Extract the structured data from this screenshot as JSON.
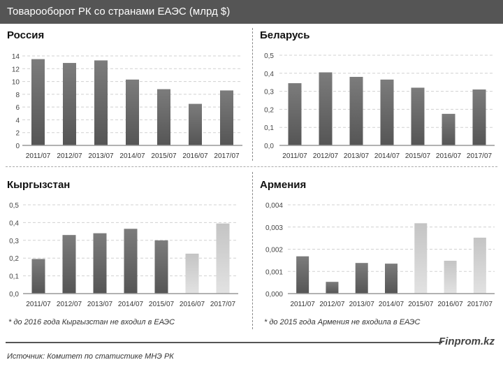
{
  "header": {
    "title": "Товарооборот РК со странами ЕАЭС (млрд $)"
  },
  "colors": {
    "header_bg": "#555555",
    "bar_dark": "#606060",
    "bar_light": "#d4d4d4"
  },
  "chart_data": [
    {
      "type": "bar",
      "title": "Россия",
      "categories": [
        "2011/07",
        "2012/07",
        "2013/07",
        "2014/07",
        "2015/07",
        "2016/07",
        "2017/07"
      ],
      "values": [
        13.5,
        12.9,
        13.3,
        10.3,
        8.8,
        6.5,
        8.6
      ],
      "ylim": [
        0,
        14
      ],
      "yticks": [
        "0",
        "2",
        "4",
        "6",
        "8",
        "10",
        "12",
        "14"
      ],
      "light": [
        false,
        false,
        false,
        false,
        false,
        false,
        false
      ],
      "grid": true
    },
    {
      "type": "bar",
      "title": "Беларусь",
      "categories": [
        "2011/07",
        "2012/07",
        "2013/07",
        "2014/07",
        "2015/07",
        "2016/07",
        "2017/07"
      ],
      "values": [
        0.345,
        0.405,
        0.38,
        0.365,
        0.32,
        0.175,
        0.31
      ],
      "ylim": [
        0,
        0.5
      ],
      "yticks": [
        "0,0",
        "0,1",
        "0,2",
        "0,3",
        "0,4",
        "0,5"
      ],
      "light": [
        false,
        false,
        false,
        false,
        false,
        false,
        false
      ],
      "grid": true
    },
    {
      "type": "bar",
      "title": "Кыргызстан",
      "categories": [
        "2011/07",
        "2012/07",
        "2013/07",
        "2014/07",
        "2015/07",
        "2016/07",
        "2017/07"
      ],
      "values": [
        0.195,
        0.33,
        0.34,
        0.365,
        0.3,
        0.225,
        0.395
      ],
      "ylim": [
        0,
        0.5
      ],
      "yticks": [
        "0,0",
        "0,1",
        "0,2",
        "0,3",
        "0,4",
        "0,5"
      ],
      "light": [
        false,
        false,
        false,
        false,
        false,
        true,
        true
      ],
      "grid": true,
      "note": "* до 2016 года Кыргызстан не входил в ЕАЭС"
    },
    {
      "type": "bar",
      "title": "Армения",
      "categories": [
        "2011/07",
        "2012/07",
        "2013/07",
        "2014/07",
        "2015/07",
        "2016/07",
        "2017/07"
      ],
      "values": [
        0.00168,
        0.00053,
        0.00138,
        0.00135,
        0.00317,
        0.00148,
        0.00252
      ],
      "ylim": [
        0,
        0.004
      ],
      "yticks": [
        "0,000",
        "0,001",
        "0,002",
        "0,003",
        "0,004"
      ],
      "light": [
        false,
        false,
        false,
        false,
        true,
        true,
        true
      ],
      "grid": true,
      "note": "* до 2015 года Армения не входила в ЕАЭС"
    }
  ],
  "footer": {
    "brand": "Finprom.kz",
    "source": "Источник:  Комитет по статистике МНЭ РК"
  }
}
